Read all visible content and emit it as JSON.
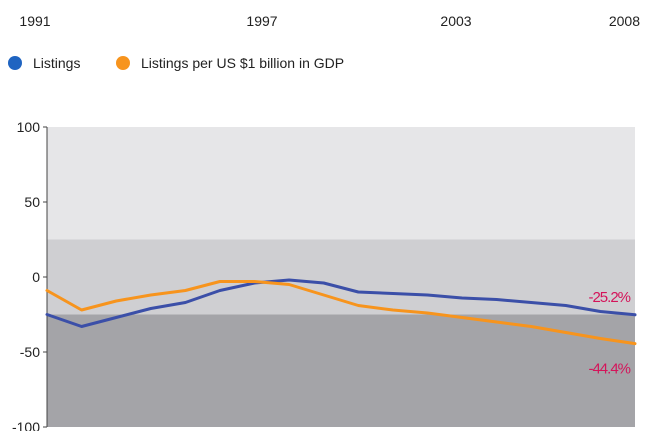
{
  "chart_data": {
    "type": "line",
    "title": "",
    "xlabel": "",
    "ylabel": "",
    "x_ticks": [
      "1991",
      "1997",
      "2003",
      "2008"
    ],
    "x_range": [
      1991,
      2008
    ],
    "y_ticks": [
      "100",
      "50",
      "0",
      "-50",
      "-100"
    ],
    "ylim": [
      -100,
      100
    ],
    "legend_position": "top-left",
    "bands": [
      {
        "from": 25,
        "to": 100,
        "color": "#e6e6e8"
      },
      {
        "from": -25,
        "to": 25,
        "color": "#cfcfd2"
      },
      {
        "from": -100,
        "to": -25,
        "color": "#a4a4a8"
      }
    ],
    "series": [
      {
        "name": "Listings",
        "color": "#3b4fa8",
        "marker_color": "#1f64c1",
        "x": [
          1991,
          1992,
          1993,
          1994,
          1995,
          1996,
          1997,
          1998,
          1999,
          2000,
          2001,
          2002,
          2003,
          2004,
          2005,
          2006,
          2007,
          2008
        ],
        "y": [
          -25,
          -33,
          -27,
          -21,
          -17,
          -9,
          -4,
          -2,
          -4,
          -10,
          -11,
          -12,
          -14,
          -15,
          -17,
          -19,
          -23,
          -25.2
        ],
        "end_label": "-25.2%"
      },
      {
        "name": "Listings per US $1 billion in GDP",
        "color": "#f7941d",
        "marker_color": "#f7941d",
        "x": [
          1991,
          1992,
          1993,
          1994,
          1995,
          1996,
          1997,
          1998,
          1999,
          2000,
          2001,
          2002,
          2003,
          2004,
          2005,
          2006,
          2007,
          2008
        ],
        "y": [
          -9,
          -22,
          -16,
          -12,
          -9,
          -3,
          -3,
          -5,
          -12,
          -19,
          -22,
          -24,
          -27,
          -30,
          -33,
          -37,
          -41,
          -44.4
        ],
        "end_label": "-44.4%"
      }
    ],
    "end_label_color": "#d4145a"
  }
}
